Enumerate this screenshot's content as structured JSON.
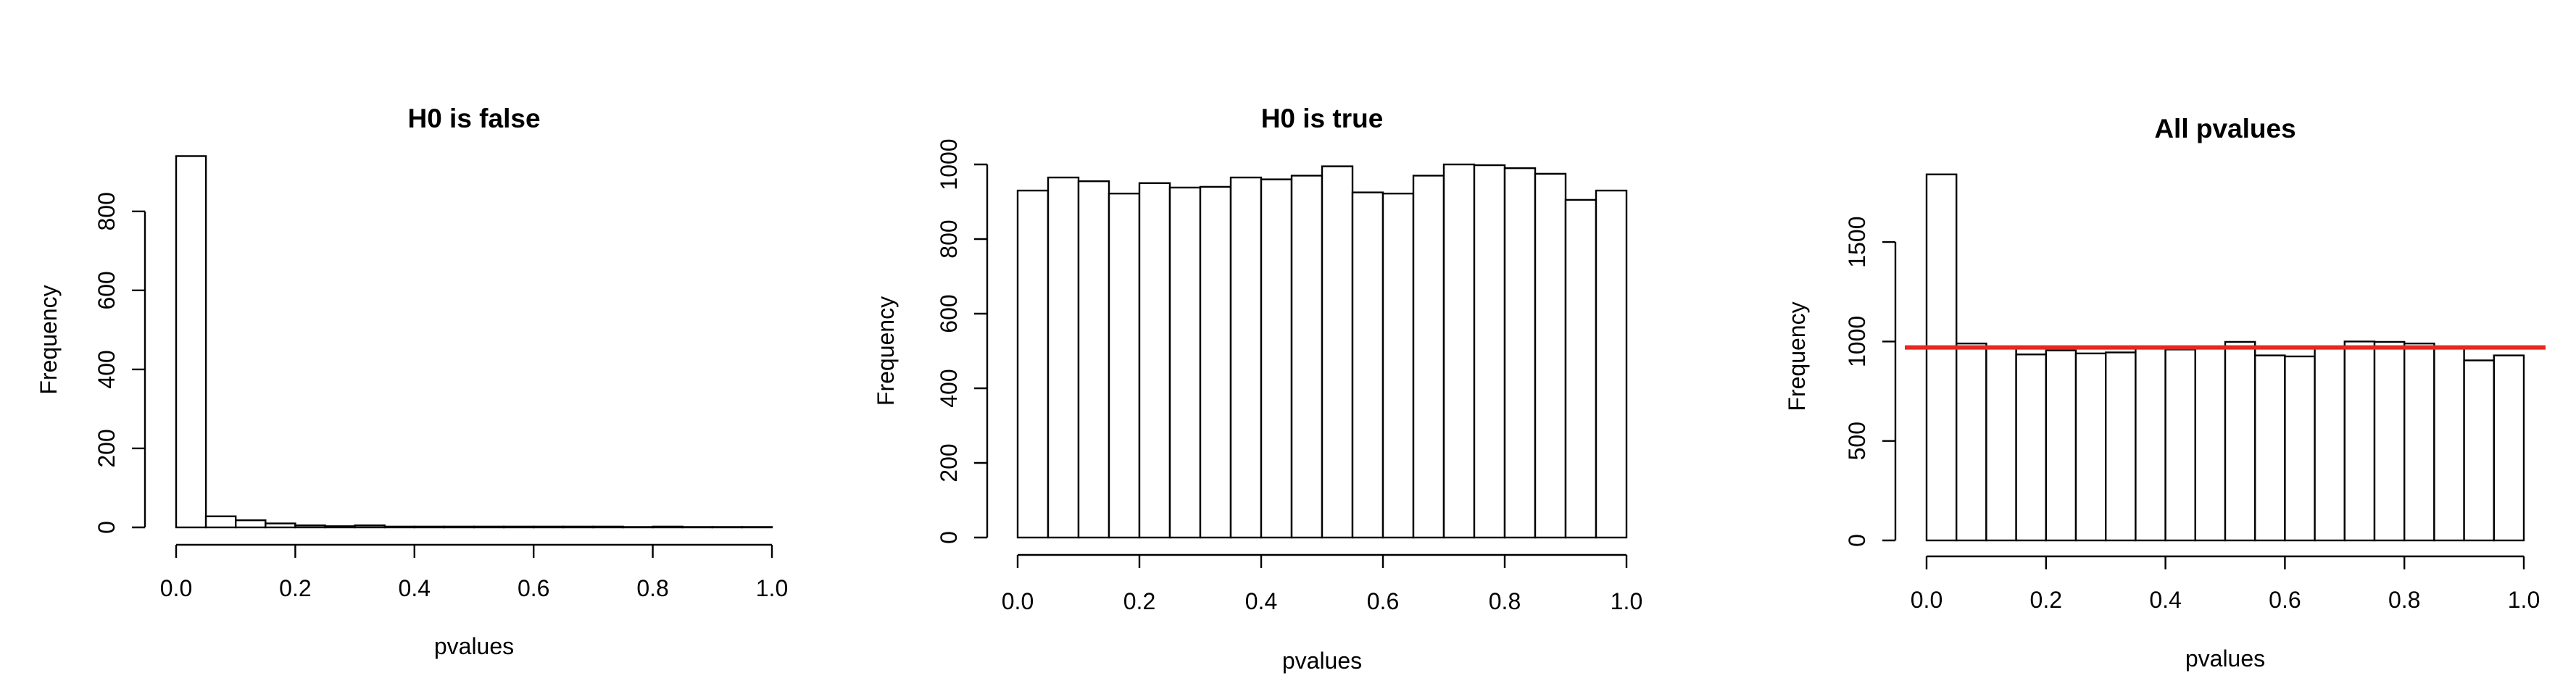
{
  "chart_data": [
    {
      "type": "bar",
      "title": "H0 is false",
      "xlabel": "pvalues",
      "ylabel": "Frequency",
      "xlim": [
        0,
        1
      ],
      "ylim": [
        0,
        950
      ],
      "bin_width": 0.05,
      "x_ticks": [
        "0.0",
        "0.2",
        "0.4",
        "0.6",
        "0.8",
        "1.0"
      ],
      "y_ticks": [
        "0",
        "200",
        "400",
        "600",
        "800"
      ],
      "categories": [
        "0.00-0.05",
        "0.05-0.10",
        "0.10-0.15",
        "0.15-0.20",
        "0.20-0.25",
        "0.25-0.30",
        "0.30-0.35",
        "0.35-0.40",
        "0.40-0.45",
        "0.45-0.50",
        "0.50-0.55",
        "0.55-0.60",
        "0.60-0.65",
        "0.65-0.70",
        "0.70-0.75",
        "0.75-0.80",
        "0.80-0.85",
        "0.85-0.90",
        "0.90-0.95",
        "0.95-1.00"
      ],
      "values": [
        940,
        28,
        18,
        10,
        5,
        3,
        5,
        2,
        2,
        2,
        2,
        2,
        2,
        2,
        2,
        1,
        2,
        1,
        1,
        1
      ],
      "grid": false
    },
    {
      "type": "bar",
      "title": "H0 is true",
      "xlabel": "pvalues",
      "ylabel": "Frequency",
      "xlim": [
        0,
        1
      ],
      "ylim": [
        0,
        1000
      ],
      "bin_width": 0.05,
      "x_ticks": [
        "0.0",
        "0.2",
        "0.4",
        "0.6",
        "0.8",
        "1.0"
      ],
      "y_ticks": [
        "0",
        "200",
        "400",
        "600",
        "800",
        "1000"
      ],
      "categories": [
        "0.00-0.05",
        "0.05-0.10",
        "0.10-0.15",
        "0.15-0.20",
        "0.20-0.25",
        "0.25-0.30",
        "0.30-0.35",
        "0.35-0.40",
        "0.40-0.45",
        "0.45-0.50",
        "0.50-0.55",
        "0.55-0.60",
        "0.60-0.65",
        "0.65-0.70",
        "0.70-0.75",
        "0.75-0.80",
        "0.80-0.85",
        "0.85-0.90",
        "0.90-0.95",
        "0.95-1.00"
      ],
      "values": [
        930,
        965,
        955,
        922,
        950,
        938,
        940,
        965,
        960,
        970,
        995,
        925,
        922,
        970,
        1000,
        998,
        990,
        975,
        905,
        930
      ],
      "grid": false
    },
    {
      "type": "bar",
      "title": "All pvalues",
      "xlabel": "pvalues",
      "ylabel": "Frequency",
      "xlim": [
        0,
        1
      ],
      "ylim": [
        0,
        1850
      ],
      "bin_width": 0.05,
      "x_ticks": [
        "0.0",
        "0.2",
        "0.4",
        "0.6",
        "0.8",
        "1.0"
      ],
      "y_ticks": [
        "0",
        "500",
        "1000",
        "1500"
      ],
      "categories": [
        "0.00-0.05",
        "0.05-0.10",
        "0.10-0.15",
        "0.15-0.20",
        "0.20-0.25",
        "0.25-0.30",
        "0.30-0.35",
        "0.35-0.40",
        "0.40-0.45",
        "0.45-0.50",
        "0.50-0.55",
        "0.55-0.60",
        "0.60-0.65",
        "0.65-0.70",
        "0.70-0.75",
        "0.75-0.80",
        "0.80-0.85",
        "0.85-0.90",
        "0.90-0.95",
        "0.95-1.00"
      ],
      "values": [
        1840,
        990,
        975,
        935,
        955,
        940,
        945,
        965,
        960,
        972,
        998,
        930,
        925,
        970,
        1000,
        998,
        990,
        975,
        905,
        930
      ],
      "reference_line": {
        "y": 970,
        "color": "#e8281e"
      },
      "grid": false
    }
  ]
}
